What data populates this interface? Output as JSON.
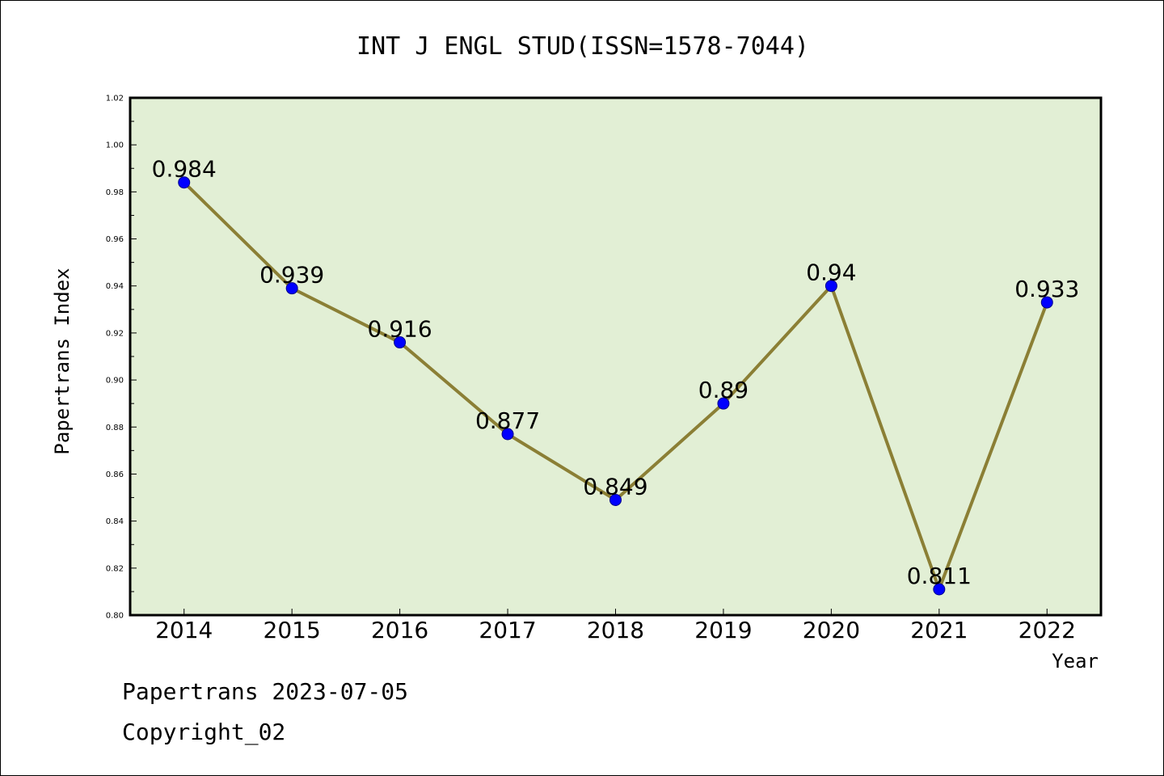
{
  "chart_data": {
    "type": "line",
    "title": "INT J ENGL STUD(ISSN=1578-7044)",
    "xlabel": "Year",
    "ylabel": "Papertrans Index",
    "categories": [
      "2014",
      "2015",
      "2016",
      "2017",
      "2018",
      "2019",
      "2020",
      "2021",
      "2022"
    ],
    "series": [
      {
        "values": [
          0.984,
          0.939,
          0.916,
          0.877,
          0.849,
          0.89,
          0.94,
          0.811,
          0.933
        ],
        "labels": [
          "0.984",
          "0.939",
          "0.916",
          "0.877",
          "0.849",
          "0.89",
          "0.94",
          "0.811",
          "0.933"
        ]
      }
    ],
    "ylim": [
      0.8,
      1.02
    ],
    "yticks": [
      "0.80",
      "0.82",
      "0.84",
      "0.86",
      "0.88",
      "0.90",
      "0.92",
      "0.94",
      "0.96",
      "0.98",
      "1.00",
      "1.02"
    ],
    "grid": false,
    "colors": {
      "plot_background": "#e2efd5",
      "line": "#8b7f35",
      "marker": "#0000ff"
    }
  },
  "footer": {
    "line1": "Papertrans 2023-07-05",
    "line2": "Copyright_02"
  }
}
